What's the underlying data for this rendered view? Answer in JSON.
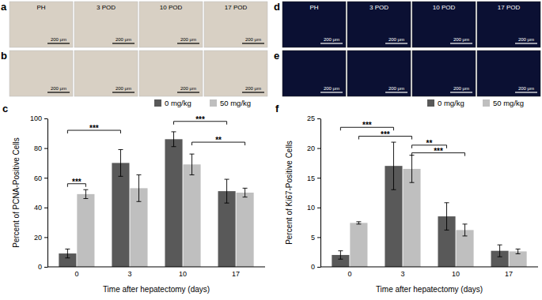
{
  "images": [
    {
      "panel_label": "a",
      "columns": [
        "PH",
        "3 POD",
        "10 POD",
        "17 POD"
      ],
      "scale_bars": [
        "200 μm",
        "200 μm",
        "200 μm",
        "200 μm"
      ]
    },
    {
      "panel_label": "b",
      "scale_bars": [
        "200 μm",
        "200 μm",
        "200 μm",
        "200 μm"
      ]
    },
    {
      "panel_label": "d",
      "columns": [
        "PH",
        "3 POD",
        "10 POD",
        "17 POD"
      ],
      "scale_bars": [
        "200 μm",
        "200 μm",
        "200 μm",
        "200 μm"
      ]
    },
    {
      "panel_label": "e",
      "scale_bars": [
        "200 μm",
        "200 μm",
        "200 μm",
        "200 μm"
      ]
    }
  ],
  "chart_data": [
    {
      "type": "bar",
      "panel_label": "c",
      "x_label": "Time after hepatectomy (days)",
      "y_label": "Percent of PCNA-Positive Cells",
      "categories": [
        "0",
        "3",
        "10",
        "17"
      ],
      "series": [
        {
          "name": "0 mg/kg",
          "color": "#595959",
          "values": [
            9,
            70,
            86,
            51
          ],
          "errors": [
            3,
            9,
            5,
            8
          ]
        },
        {
          "name": "50 mg/kg",
          "color": "#bfbfbf",
          "values": [
            49,
            53,
            69,
            50
          ],
          "errors": [
            3,
            9,
            7,
            3
          ]
        }
      ],
      "ylim": [
        0,
        100
      ],
      "yticks": [
        0,
        20,
        40,
        60,
        80,
        100
      ],
      "legend": "top right",
      "annotations": [
        {
          "text": "***",
          "start": [
            0,
            0
          ],
          "end": [
            1,
            0
          ],
          "y": 56
        },
        {
          "text": "***",
          "start": [
            0,
            0
          ],
          "end": [
            0,
            1
          ],
          "y": 92
        },
        {
          "text": "***",
          "start": [
            0,
            2
          ],
          "end": [
            0,
            3
          ],
          "y": 98
        },
        {
          "text": "**",
          "start": [
            1,
            2
          ],
          "end": [
            1,
            3
          ],
          "y": 84
        }
      ]
    },
    {
      "type": "bar",
      "panel_label": "f",
      "x_label": "Time after hepatectomy (days)",
      "y_label": "Percent of Ki67-Positive Cells",
      "categories": [
        "0",
        "3",
        "10",
        "17"
      ],
      "series": [
        {
          "name": "0 mg/kg",
          "color": "#595959",
          "values": [
            2,
            17,
            8.5,
            2.7
          ],
          "errors": [
            0.7,
            4,
            2.3,
            1
          ]
        },
        {
          "name": "50 mg/kg",
          "color": "#bfbfbf",
          "values": [
            7.4,
            16.5,
            6.2,
            2.6
          ],
          "errors": [
            0.2,
            2.3,
            1,
            0.4
          ]
        }
      ],
      "ylim": [
        0,
        25
      ],
      "yticks": [
        0,
        5,
        10,
        15,
        20,
        25
      ],
      "legend": "top right",
      "annotations": [
        {
          "text": "***",
          "start": [
            0,
            0
          ],
          "end": [
            0,
            1
          ],
          "y": 23.5
        },
        {
          "text": "***",
          "start": [
            1,
            0
          ],
          "end": [
            1,
            1
          ],
          "y": 22
        },
        {
          "text": "**",
          "start": [
            1,
            1
          ],
          "end": [
            0,
            2
          ],
          "y": 20.5
        },
        {
          "text": "***",
          "start": [
            1,
            1
          ],
          "end": [
            1,
            2
          ],
          "y": 19.2
        }
      ]
    }
  ]
}
